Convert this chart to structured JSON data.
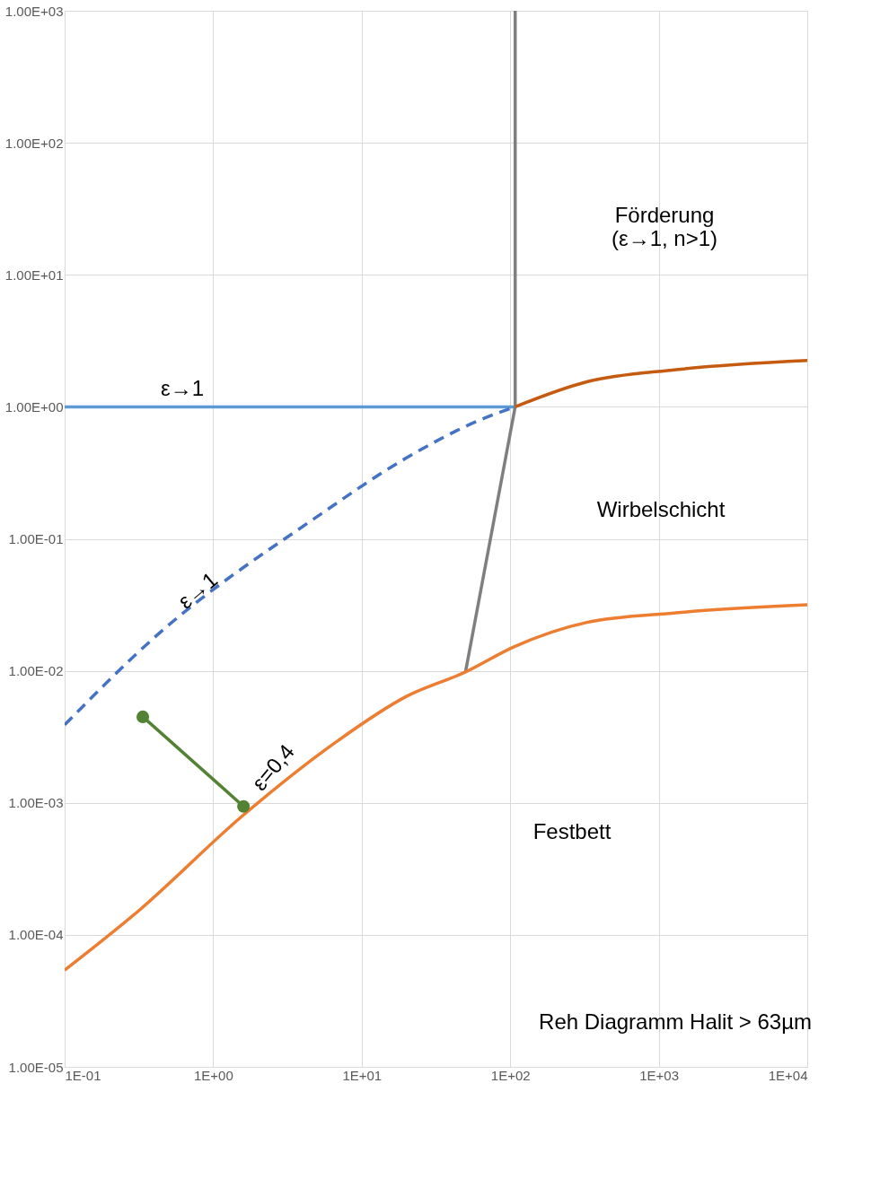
{
  "chart_data": {
    "type": "line",
    "log": "xy",
    "grid": true,
    "xlim": [
      0.1,
      10000
    ],
    "ylim": [
      1e-05,
      1000
    ],
    "xticks": [
      {
        "value": 0.1,
        "label": "1E-01"
      },
      {
        "value": 1,
        "label": "1E+00"
      },
      {
        "value": 10,
        "label": "1E+01"
      },
      {
        "value": 100,
        "label": "1E+02"
      },
      {
        "value": 1000,
        "label": "1E+03"
      },
      {
        "value": 10000,
        "label": "1E+04"
      }
    ],
    "yticks": [
      {
        "value": 1e-05,
        "label": "1.00E-05"
      },
      {
        "value": 0.0001,
        "label": "1.00E-04"
      },
      {
        "value": 0.001,
        "label": "1.00E-03"
      },
      {
        "value": 0.01,
        "label": "1.00E-02"
      },
      {
        "value": 0.1,
        "label": "1.00E-01"
      },
      {
        "value": 1,
        "label": "1.00E+00"
      },
      {
        "value": 10,
        "label": "1.00E+01"
      },
      {
        "value": 100,
        "label": "1.00E+02"
      },
      {
        "value": 1000,
        "label": "1.00E+03"
      }
    ],
    "series": [
      {
        "color": "#5b9bd5",
        "line_style": "solid",
        "marker": "none",
        "x": [
          0.1,
          108
        ],
        "values": [
          1,
          1
        ]
      },
      {
        "color": "#4472c4",
        "line_style": "dashed",
        "marker": "none",
        "x": [
          0.1,
          0.4,
          5,
          20,
          61,
          108
        ],
        "values": [
          0.0039,
          0.0178,
          0.147,
          0.41,
          0.785,
          1
        ]
      },
      {
        "color": "#7f7f7f",
        "line_style": "solid",
        "marker": "none",
        "x": [
          50,
          108,
          108
        ],
        "values": [
          0.0098,
          1,
          1000
        ]
      },
      {
        "color": "#c55a11",
        "line_style": "solid",
        "marker": "none",
        "x": [
          108,
          324,
          1310,
          10000
        ],
        "values": [
          1,
          1.54,
          1.91,
          2.24
        ]
      },
      {
        "color": "#ed7d31",
        "line_style": "solid",
        "marker": "none",
        "x": [
          0.1,
          0.31,
          1.6,
          6.6,
          20,
          50,
          106,
          324,
          1310,
          10000
        ],
        "values": [
          5.4e-05,
          0.00015,
          0.00081,
          0.00285,
          0.0064,
          0.0098,
          0.0152,
          0.0232,
          0.0275,
          0.0316
        ]
      },
      {
        "color": "#548235",
        "line_style": "solid",
        "marker": "circle",
        "x": [
          0.336,
          1.6
        ],
        "values": [
          0.00448,
          0.00094
        ]
      }
    ],
    "annotations": [
      "ε→1",
      "ε→1",
      "ε=0,4",
      "Förderung\n(ε→1, n>1)",
      "Wirbelschicht",
      "Festbett",
      "Reh Diagramm Halit > 63µm"
    ]
  }
}
